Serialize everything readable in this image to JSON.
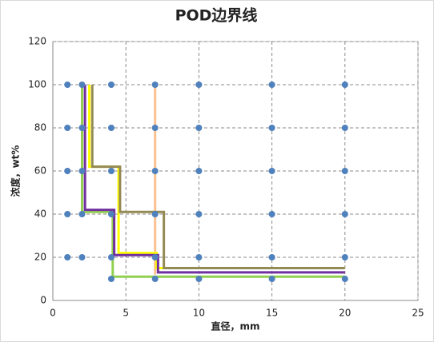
{
  "chart_data": {
    "type": "scatter",
    "title": "POD边界线",
    "x_label": "直径，mm",
    "y_label": "浓度，wt%",
    "xlim": [
      0,
      25
    ],
    "xticks": [
      0,
      5,
      10,
      15,
      20,
      25
    ],
    "ylim": [
      0,
      120
    ],
    "yticks": [
      0,
      20,
      40,
      60,
      80,
      100,
      120
    ],
    "grid": true,
    "series": [
      {
        "type": "scatter",
        "color": "#4f81bd",
        "x": [
          1,
          1,
          1,
          1,
          1,
          2,
          2,
          2,
          2,
          2,
          4,
          4,
          4,
          4,
          4,
          4,
          7,
          7,
          7,
          7,
          7,
          7,
          10,
          10,
          10,
          10,
          10,
          10,
          15,
          15,
          15,
          15,
          15,
          15,
          20,
          20,
          20,
          20,
          20,
          20
        ],
        "values": [
          20,
          40,
          60,
          80,
          100,
          20,
          40,
          60,
          80,
          100,
          10,
          20,
          40,
          60,
          80,
          100,
          10,
          20,
          40,
          60,
          80,
          100,
          10,
          20,
          40,
          60,
          80,
          100,
          10,
          20,
          40,
          60,
          80,
          100,
          10,
          20,
          40,
          60,
          80,
          100
        ]
      },
      {
        "type": "line",
        "color": "#fac090",
        "x": [
          7,
          7
        ],
        "values": [
          100,
          12
        ]
      },
      {
        "type": "line",
        "color": "#92d050",
        "x": [
          2,
          2,
          4.1,
          4.1,
          20
        ],
        "values": [
          100,
          41,
          41,
          11,
          11
        ]
      },
      {
        "type": "line",
        "color": "#ffff00",
        "x": [
          2.5,
          2.5,
          4.5,
          4.5,
          7.1,
          7.1,
          20
        ],
        "values": [
          100,
          62,
          62,
          22,
          22,
          15,
          15
        ]
      },
      {
        "type": "line",
        "color": "#7030a0",
        "x": [
          2.2,
          2.2,
          4.2,
          4.2,
          7.2,
          7.2,
          20
        ],
        "values": [
          100,
          42,
          42,
          21,
          21,
          13,
          13
        ]
      },
      {
        "type": "line",
        "color": "#948a54",
        "x": [
          2.7,
          2.7,
          4.6,
          4.6,
          7.6,
          7.6,
          20
        ],
        "values": [
          100,
          62,
          62,
          41,
          41,
          15,
          15
        ]
      }
    ]
  }
}
